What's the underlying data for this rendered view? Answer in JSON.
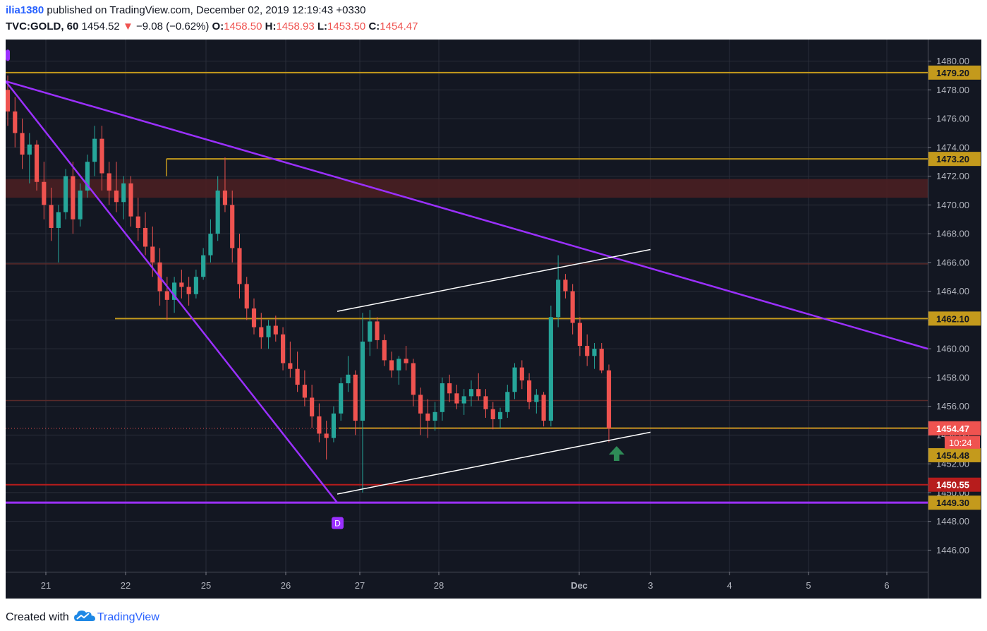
{
  "header": {
    "user": "ilia1380",
    "published": " published on TradingView.com, December 02, 2019 12:19:43 +0330",
    "symbol": "TVC:GOLD, 60",
    "last": "1454.52",
    "arrow": "▼",
    "change": "−9.08 (−0.62%)",
    "o_label": "O:",
    "o_value": "1458.50",
    "h_label": "H:",
    "h_value": "1458.93",
    "l_label": "L:",
    "l_value": "1453.50",
    "c_label": "C:",
    "c_value": "1454.47"
  },
  "footer": {
    "created_with": "Created with",
    "brand": "TradingView"
  },
  "colors": {
    "background": "#131722",
    "grid": "#2a2e39",
    "up": "#26a69a",
    "down": "#ef5350",
    "level": "#c49a1c",
    "trend": "#9b30ff",
    "channel": "#ffffff",
    "zone": "#4a1f22",
    "red_level": "#b71c1c",
    "arrow": "#2e8b57"
  },
  "chart_data": {
    "type": "candlestick",
    "ylim": [
      1444.5,
      1481.5
    ],
    "y_ticks": [
      "1446.00",
      "1448.00",
      "1450.00",
      "1452.00",
      "1454.00",
      "1456.00",
      "1458.00",
      "1460.00",
      "1462.00",
      "1464.00",
      "1466.00",
      "1468.00",
      "1470.00",
      "1472.00",
      "1474.00",
      "1476.00",
      "1478.00",
      "1480.00"
    ],
    "x_tick_labels": [
      "21",
      "22",
      "25",
      "26",
      "27",
      "28",
      "Dec",
      "3",
      "4",
      "5",
      "6"
    ],
    "price_labels": [
      {
        "value": 1479.2,
        "text": "1479.20",
        "style": "level"
      },
      {
        "value": 1473.2,
        "text": "1473.20",
        "style": "level"
      },
      {
        "value": 1462.1,
        "text": "1462.10",
        "style": "level"
      },
      {
        "value": 1454.47,
        "text": "1454.47",
        "style": "last"
      },
      {
        "value": 1454.48,
        "text": "1454.48",
        "style": "level"
      },
      {
        "value": 1450.55,
        "text": "1450.55",
        "style": "red"
      },
      {
        "value": 1449.3,
        "text": "1449.30",
        "style": "level"
      }
    ],
    "countdown": "10:24",
    "pattern_label": "D",
    "candles": [
      [
        1478,
        1479,
        1475.5,
        1476.5
      ],
      [
        1476.5,
        1477.5,
        1474,
        1475
      ],
      [
        1475,
        1476,
        1472.5,
        1473.5
      ],
      [
        1473.5,
        1475,
        1471.5,
        1474.2
      ],
      [
        1474.2,
        1474.5,
        1471,
        1471.6
      ],
      [
        1471.6,
        1473,
        1469,
        1470
      ],
      [
        1470,
        1471.2,
        1467.5,
        1468.4
      ],
      [
        1468.4,
        1470,
        1466,
        1469.5
      ],
      [
        1469.5,
        1472.5,
        1469,
        1472
      ],
      [
        1472,
        1473,
        1468,
        1469
      ],
      [
        1469,
        1471.5,
        1468.5,
        1471
      ],
      [
        1471,
        1473.5,
        1470.5,
        1473
      ],
      [
        1473,
        1475.5,
        1472,
        1474.6
      ],
      [
        1474.6,
        1475.5,
        1471,
        1472.2
      ],
      [
        1472.2,
        1473,
        1470,
        1471
      ],
      [
        1471,
        1473,
        1469.5,
        1470.2
      ],
      [
        1470.2,
        1472,
        1469,
        1471.5
      ],
      [
        1471.5,
        1472,
        1468.5,
        1469.2
      ],
      [
        1469.2,
        1470.5,
        1467.5,
        1468.4
      ],
      [
        1468.4,
        1469.5,
        1466.5,
        1467.1
      ],
      [
        1467.1,
        1468.5,
        1465,
        1466
      ],
      [
        1466,
        1467,
        1463,
        1464
      ],
      [
        1464,
        1465,
        1462,
        1463.4
      ],
      [
        1463.4,
        1465,
        1462.5,
        1464.6
      ],
      [
        1464.6,
        1465.5,
        1463.5,
        1464.3
      ],
      [
        1464.3,
        1465,
        1463,
        1463.8
      ],
      [
        1463.8,
        1465.5,
        1463.5,
        1465
      ],
      [
        1465,
        1467,
        1464.8,
        1466.5
      ],
      [
        1466.5,
        1469,
        1466,
        1468
      ],
      [
        1468,
        1472,
        1467.5,
        1471
      ],
      [
        1471,
        1473.3,
        1469.5,
        1470
      ],
      [
        1470,
        1471,
        1466,
        1467
      ],
      [
        1467,
        1468,
        1463.5,
        1464.5
      ],
      [
        1464.5,
        1465,
        1462,
        1462.8
      ],
      [
        1462.8,
        1463.5,
        1461,
        1461.5
      ],
      [
        1461.5,
        1462.5,
        1460,
        1460.8
      ],
      [
        1460.8,
        1462,
        1460,
        1461.6
      ],
      [
        1461.6,
        1462.3,
        1460.5,
        1461
      ],
      [
        1461,
        1461.5,
        1458.5,
        1459
      ],
      [
        1459,
        1460.5,
        1458,
        1458.6
      ],
      [
        1458.6,
        1459.8,
        1457,
        1457.5
      ],
      [
        1457.5,
        1458.5,
        1456,
        1456.6
      ],
      [
        1456.6,
        1457.5,
        1454.5,
        1455.3
      ],
      [
        1455.3,
        1456.2,
        1453.5,
        1454.1
      ],
      [
        1454.1,
        1455,
        1452.3,
        1453.8
      ],
      [
        1453.8,
        1456,
        1453.5,
        1455.5
      ],
      [
        1455.5,
        1458,
        1455,
        1457.6
      ],
      [
        1457.6,
        1459.5,
        1457,
        1458.2
      ],
      [
        1458.2,
        1458.5,
        1454,
        1455
      ],
      [
        1455,
        1462.5,
        1450,
        1460.5
      ],
      [
        1460.5,
        1462.7,
        1459.5,
        1461.9
      ],
      [
        1461.9,
        1462.2,
        1460,
        1460.6
      ],
      [
        1460.6,
        1461,
        1458.8,
        1459.2
      ],
      [
        1459.2,
        1459.8,
        1458,
        1458.5
      ],
      [
        1458.5,
        1459.5,
        1457.5,
        1459.3
      ],
      [
        1459.3,
        1460.2,
        1458.5,
        1459
      ],
      [
        1459,
        1459.3,
        1456,
        1456.8
      ],
      [
        1456.8,
        1457.3,
        1454,
        1455.5
      ],
      [
        1455.5,
        1456.5,
        1453.8,
        1455
      ],
      [
        1455,
        1456.3,
        1454.3,
        1455.6
      ],
      [
        1455.6,
        1458,
        1455,
        1457.6
      ],
      [
        1457.6,
        1458.2,
        1456.3,
        1456.9
      ],
      [
        1456.9,
        1457.5,
        1455.8,
        1456.2
      ],
      [
        1456.2,
        1457.2,
        1455.4,
        1456.7
      ],
      [
        1456.7,
        1457.8,
        1456,
        1457.2
      ],
      [
        1457.2,
        1458.3,
        1456.4,
        1456.7
      ],
      [
        1456.7,
        1457.2,
        1455.2,
        1455.8
      ],
      [
        1455.8,
        1456.3,
        1454.4,
        1455.1
      ],
      [
        1455.1,
        1455.9,
        1454.5,
        1455.6
      ],
      [
        1455.6,
        1457.5,
        1455.2,
        1457
      ],
      [
        1457,
        1459,
        1456.5,
        1458.7
      ],
      [
        1458.7,
        1459.2,
        1457.2,
        1457.8
      ],
      [
        1457.8,
        1458.3,
        1455.8,
        1456.3
      ],
      [
        1456.3,
        1457.2,
        1455.5,
        1456.8
      ],
      [
        1456.8,
        1457,
        1454.6,
        1455
      ],
      [
        1455,
        1463,
        1454.6,
        1462.2
      ],
      [
        1462.2,
        1466.5,
        1461.5,
        1464.8
      ],
      [
        1464.8,
        1465.2,
        1463.5,
        1464
      ],
      [
        1464,
        1464.5,
        1461,
        1461.8
      ],
      [
        1461.8,
        1462.2,
        1459.5,
        1460.2
      ],
      [
        1460.2,
        1461,
        1458.8,
        1459.5
      ],
      [
        1459.5,
        1460.4,
        1458.6,
        1460
      ],
      [
        1460,
        1460.4,
        1458.3,
        1458.5
      ],
      [
        1458.5,
        1458.9,
        1453.5,
        1454.47
      ]
    ]
  }
}
